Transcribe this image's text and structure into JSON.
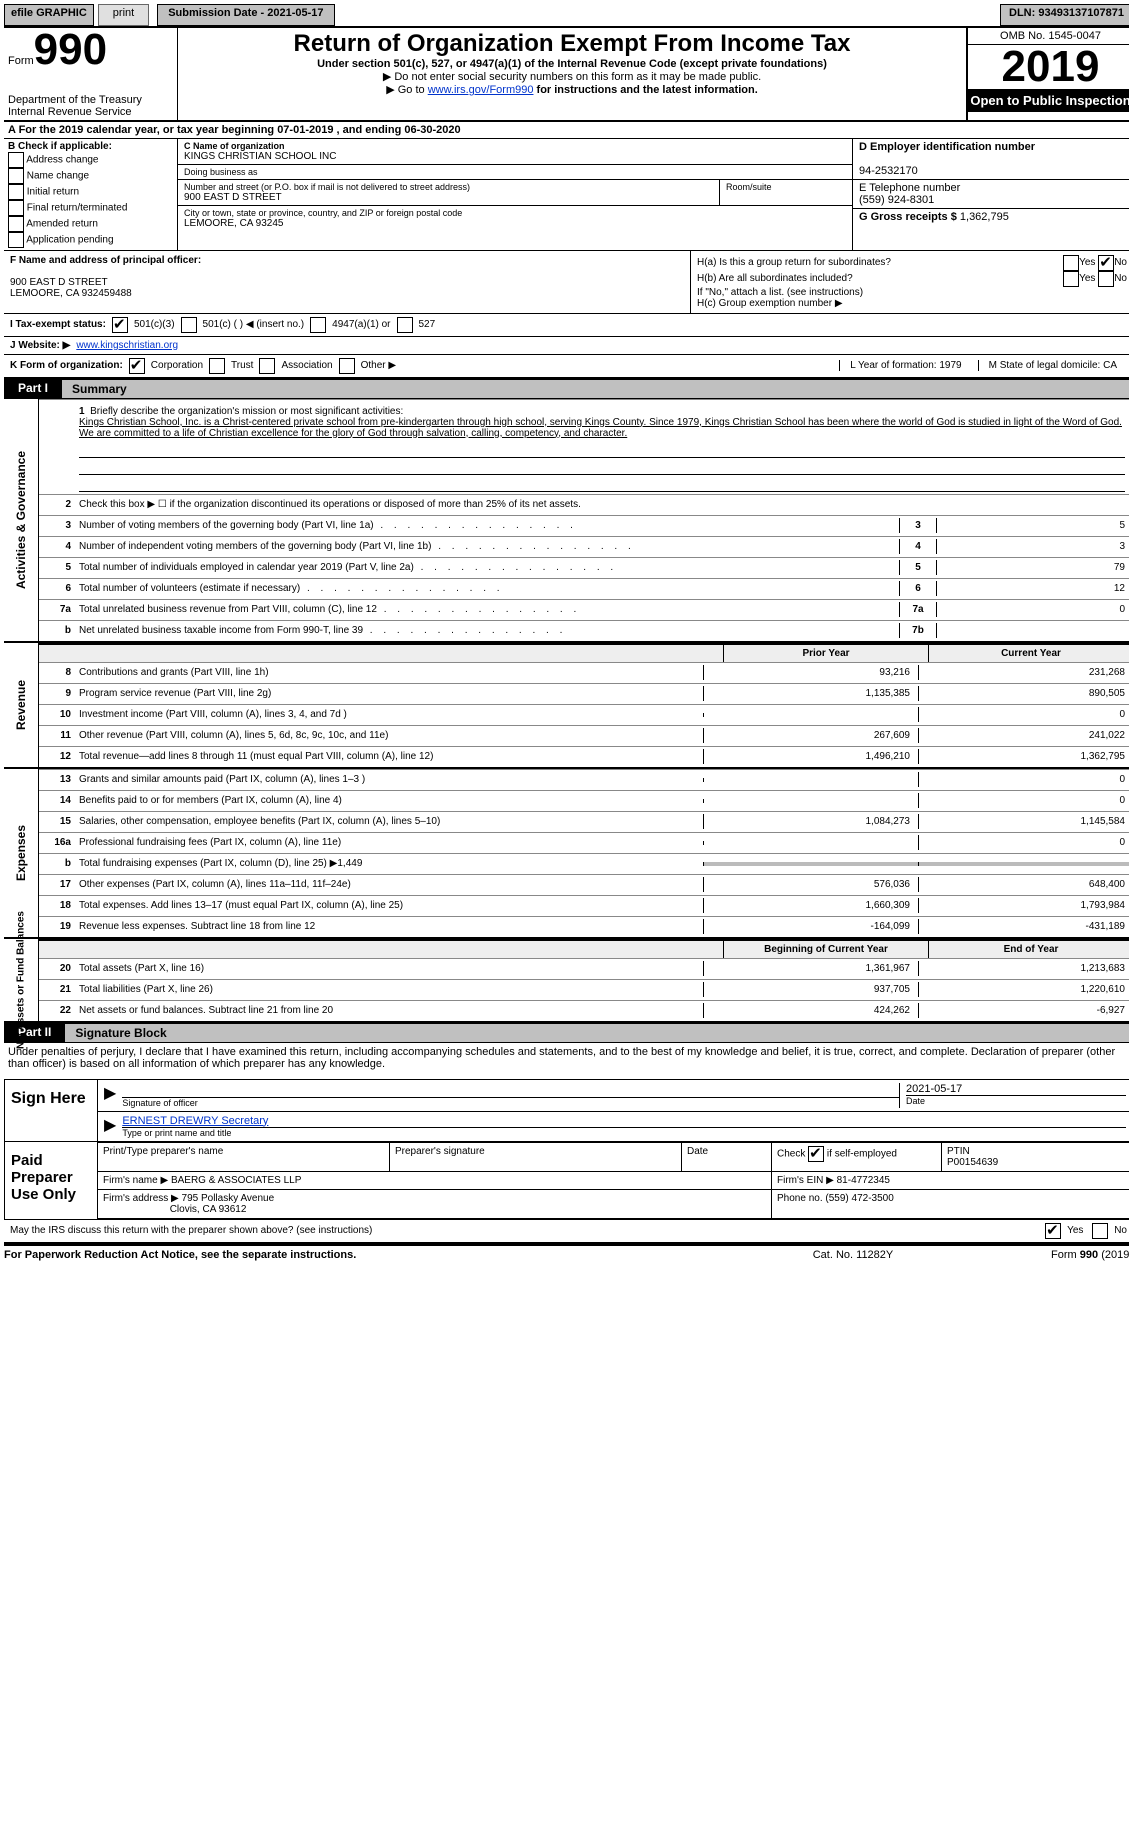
{
  "topbar": {
    "efile": "efile GRAPHIC",
    "print": "print",
    "submission": "Submission Date - 2021-05-17",
    "dln": "DLN: 93493137107871"
  },
  "header": {
    "form_word": "Form",
    "form_num": "990",
    "dept": "Department of the Treasury\nInternal Revenue Service",
    "title": "Return of Organization Exempt From Income Tax",
    "sub": "Under section 501(c), 527, or 4947(a)(1) of the Internal Revenue Code (except private foundations)",
    "sub2a": "▶ Do not enter social security numbers on this form as it may be made public.",
    "sub2b_pre": "▶ Go to ",
    "sub2b_link": "www.irs.gov/Form990",
    "sub2b_post": " for instructions and the latest information.",
    "omb": "OMB No. 1545-0047",
    "year": "2019",
    "inspect": "Open to Public Inspection"
  },
  "lineA": "A For the 2019 calendar year, or tax year beginning 07-01-2019   , and ending 06-30-2020",
  "secB": {
    "title": "B Check if applicable:",
    "opts": [
      "Address change",
      "Name change",
      "Initial return",
      "Final return/terminated",
      "Amended return",
      "Application pending"
    ]
  },
  "secC": {
    "name_lbl": "C Name of organization",
    "name": "KINGS CHRISTIAN SCHOOL INC",
    "dba_lbl": "Doing business as",
    "dba": "",
    "street_lbl": "Number and street (or P.O. box if mail is not delivered to street address)",
    "room_lbl": "Room/suite",
    "street": "900 EAST D STREET",
    "city_lbl": "City or town, state or province, country, and ZIP or foreign postal code",
    "city": "LEMOORE, CA  93245"
  },
  "secD": {
    "ein_lbl": "D Employer identification number",
    "ein": "94-2532170",
    "tel_lbl": "E Telephone number",
    "tel": "(559) 924-8301",
    "gross_lbl": "G Gross receipts $",
    "gross": "1,362,795"
  },
  "secF": {
    "lbl": "F Name and address of principal officer:",
    "addr1": "900 EAST D STREET",
    "addr2": "LEMOORE, CA  932459488"
  },
  "secH": {
    "a_lbl": "H(a)  Is this a group return for subordinates?",
    "b_lbl": "H(b)  Are all subordinates included?",
    "b_note": "If \"No,\" attach a list. (see instructions)",
    "c_lbl": "H(c)  Group exemption number ▶"
  },
  "rowI": {
    "lbl": "I   Tax-exempt status:",
    "o1": "501(c)(3)",
    "o2": "501(c) (   ) ◀ (insert no.)",
    "o3": "4947(a)(1) or",
    "o4": "527"
  },
  "rowJ": {
    "lbl": "J   Website: ▶",
    "val": "www.kingschristian.org"
  },
  "rowK": {
    "lbl": "K Form of organization:",
    "o1": "Corporation",
    "o2": "Trust",
    "o3": "Association",
    "o4": "Other ▶"
  },
  "rowLM": {
    "l": "L Year of formation: 1979",
    "m": "M State of legal domicile: CA"
  },
  "part1": {
    "tag": "Part I",
    "title": "Summary"
  },
  "briefly": {
    "num": "1",
    "lbl": "Briefly describe the organization's mission or most significant activities:",
    "txt": "Kings Christian School, Inc. is a Christ-centered private school from pre-kindergarten through high school, serving Kings County. Since 1979, Kings Christian School has been where the world of God is studied in light of the Word of God. We are committed to a life of Christian excellence for the glory of God through salvation, calling, competency, and character."
  },
  "line2": "Check this box ▶ ☐  if the organization discontinued its operations or disposed of more than 25% of its net assets.",
  "gov_lines": [
    {
      "n": "3",
      "t": "Number of voting members of the governing body (Part VI, line 1a)",
      "box": "3",
      "v": "5"
    },
    {
      "n": "4",
      "t": "Number of independent voting members of the governing body (Part VI, line 1b)",
      "box": "4",
      "v": "3"
    },
    {
      "n": "5",
      "t": "Total number of individuals employed in calendar year 2019 (Part V, line 2a)",
      "box": "5",
      "v": "79"
    },
    {
      "n": "6",
      "t": "Total number of volunteers (estimate if necessary)",
      "box": "6",
      "v": "12"
    },
    {
      "n": "7a",
      "t": "Total unrelated business revenue from Part VIII, column (C), line 12",
      "box": "7a",
      "v": "0"
    },
    {
      "n": "b",
      "t": "Net unrelated business taxable income from Form 990-T, line 39",
      "box": "7b",
      "v": ""
    }
  ],
  "col_hdr": {
    "c1": "Prior Year",
    "c2": "Current Year"
  },
  "revenue_vlabel": "Revenue",
  "revenue": [
    {
      "n": "8",
      "t": "Contributions and grants (Part VIII, line 1h)",
      "c1": "93,216",
      "c2": "231,268"
    },
    {
      "n": "9",
      "t": "Program service revenue (Part VIII, line 2g)",
      "c1": "1,135,385",
      "c2": "890,505"
    },
    {
      "n": "10",
      "t": "Investment income (Part VIII, column (A), lines 3, 4, and 7d )",
      "c1": "",
      "c2": "0"
    },
    {
      "n": "11",
      "t": "Other revenue (Part VIII, column (A), lines 5, 6d, 8c, 9c, 10c, and 11e)",
      "c1": "267,609",
      "c2": "241,022"
    },
    {
      "n": "12",
      "t": "Total revenue—add lines 8 through 11 (must equal Part VIII, column (A), line 12)",
      "c1": "1,496,210",
      "c2": "1,362,795"
    }
  ],
  "expenses_vlabel": "Expenses",
  "expenses": [
    {
      "n": "13",
      "t": "Grants and similar amounts paid (Part IX, column (A), lines 1–3 )",
      "c1": "",
      "c2": "0"
    },
    {
      "n": "14",
      "t": "Benefits paid to or for members (Part IX, column (A), line 4)",
      "c1": "",
      "c2": "0"
    },
    {
      "n": "15",
      "t": "Salaries, other compensation, employee benefits (Part IX, column (A), lines 5–10)",
      "c1": "1,084,273",
      "c2": "1,145,584"
    },
    {
      "n": "16a",
      "t": "Professional fundraising fees (Part IX, column (A), line 11e)",
      "c1": "",
      "c2": "0"
    },
    {
      "n": "b",
      "t": "Total fundraising expenses (Part IX, column (D), line 25) ▶1,449",
      "c1": "shade",
      "c2": "shade"
    },
    {
      "n": "17",
      "t": "Other expenses (Part IX, column (A), lines 11a–11d, 11f–24e)",
      "c1": "576,036",
      "c2": "648,400"
    },
    {
      "n": "18",
      "t": "Total expenses. Add lines 13–17 (must equal Part IX, column (A), line 25)",
      "c1": "1,660,309",
      "c2": "1,793,984"
    },
    {
      "n": "19",
      "t": "Revenue less expenses. Subtract line 18 from line 12",
      "c1": "-164,099",
      "c2": "-431,189"
    }
  ],
  "net_hdr": {
    "c1": "Beginning of Current Year",
    "c2": "End of Year"
  },
  "net_vlabel": "Net Assets or Fund Balances",
  "net": [
    {
      "n": "20",
      "t": "Total assets (Part X, line 16)",
      "c1": "1,361,967",
      "c2": "1,213,683"
    },
    {
      "n": "21",
      "t": "Total liabilities (Part X, line 26)",
      "c1": "937,705",
      "c2": "1,220,610"
    },
    {
      "n": "22",
      "t": "Net assets or fund balances. Subtract line 21 from line 20",
      "c1": "424,262",
      "c2": "-6,927"
    }
  ],
  "part2": {
    "tag": "Part II",
    "title": "Signature Block"
  },
  "perjury": "Under penalties of perjury, I declare that I have examined this return, including accompanying schedules and statements, and to the best of my knowledge and belief, it is true, correct, and complete. Declaration of preparer (other than officer) is based on all information of which preparer has any knowledge.",
  "sign": {
    "here": "Sign Here",
    "sig_lbl": "Signature of officer",
    "date_lbl": "Date",
    "date_val": "2021-05-17",
    "name_val": "ERNEST DREWRY Secretary",
    "name_lbl": "Type or print name and title"
  },
  "prep": {
    "here": "Paid Preparer Use Only",
    "h1": "Print/Type preparer's name",
    "h2": "Preparer's signature",
    "h3": "Date",
    "h4_pre": "Check",
    "h4_post": "if self-employed",
    "h5": "PTIN",
    "ptin": "P00154639",
    "firm_lbl": "Firm's name   ▶",
    "firm": "BAERG & ASSOCIATES LLP",
    "ein_lbl": "Firm's EIN ▶",
    "ein": "81-4772345",
    "addr_lbl": "Firm's address ▶",
    "addr1": "795 Pollasky Avenue",
    "addr2": "Clovis, CA  93612",
    "phone_lbl": "Phone no.",
    "phone": "(559) 472-3500"
  },
  "discuss": "May the IRS discuss this return with the preparer shown above? (see instructions)",
  "footer": {
    "l": "For Paperwork Reduction Act Notice, see the separate instructions.",
    "m": "Cat. No. 11282Y",
    "r": "Form 990 (2019)"
  }
}
